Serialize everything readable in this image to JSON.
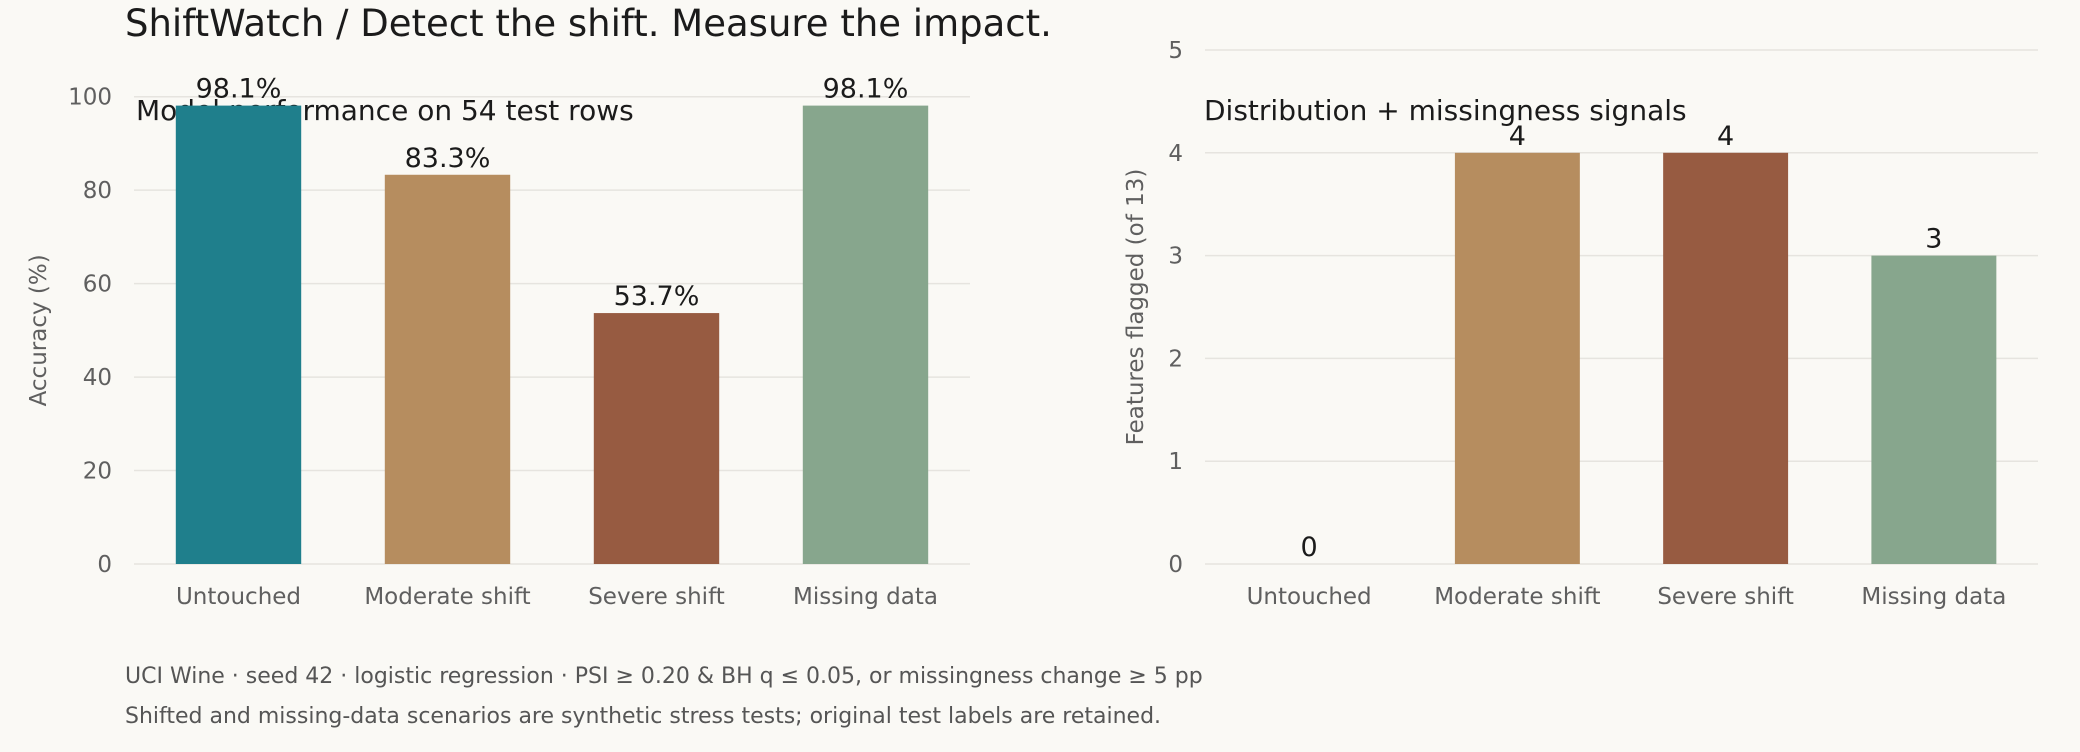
{
  "header": {
    "title": "ShiftWatch / Detect the shift. Measure the impact."
  },
  "footer": {
    "line1": "UCI Wine · seed 42 · logistic regression · PSI ≥ 0.20 & BH q ≤ 0.05, or missingness change ≥ 5 pp",
    "line2": "Shifted and missing-data scenarios are synthetic stress tests; original test labels are retained."
  },
  "colors": {
    "untouched": "#1f7f8c",
    "moderate": "#b68d5f",
    "severe": "#975b41",
    "missing": "#87a68d",
    "grid": "#e6e4df",
    "tick_text": "#5f5f5f",
    "label_text": "#1b1b1b"
  },
  "chart_data": [
    {
      "type": "bar",
      "title": "Model performance on 54 test rows",
      "ylabel": "Accuracy (%)",
      "xlabel": "",
      "categories": [
        "Untouched",
        "Moderate shift",
        "Severe shift",
        "Missing data"
      ],
      "values": [
        98.1,
        83.3,
        53.7,
        98.1
      ],
      "value_labels": [
        "98.1%",
        "83.3%",
        "53.7%",
        "98.1%"
      ],
      "ylim": [
        0,
        110
      ],
      "yticks": [
        0,
        20,
        40,
        60,
        80,
        100
      ],
      "grid": true,
      "legend": "none"
    },
    {
      "type": "bar",
      "title": "Distribution + missingness signals",
      "ylabel": "Features flagged (of 13)",
      "xlabel": "",
      "categories": [
        "Untouched",
        "Moderate shift",
        "Severe shift",
        "Missing data"
      ],
      "values": [
        0,
        4,
        4,
        3
      ],
      "value_labels": [
        "0",
        "4",
        "4",
        "3"
      ],
      "ylim": [
        0,
        5
      ],
      "yticks": [
        0,
        1,
        2,
        3,
        4,
        5
      ],
      "grid": true,
      "legend": "none"
    }
  ]
}
